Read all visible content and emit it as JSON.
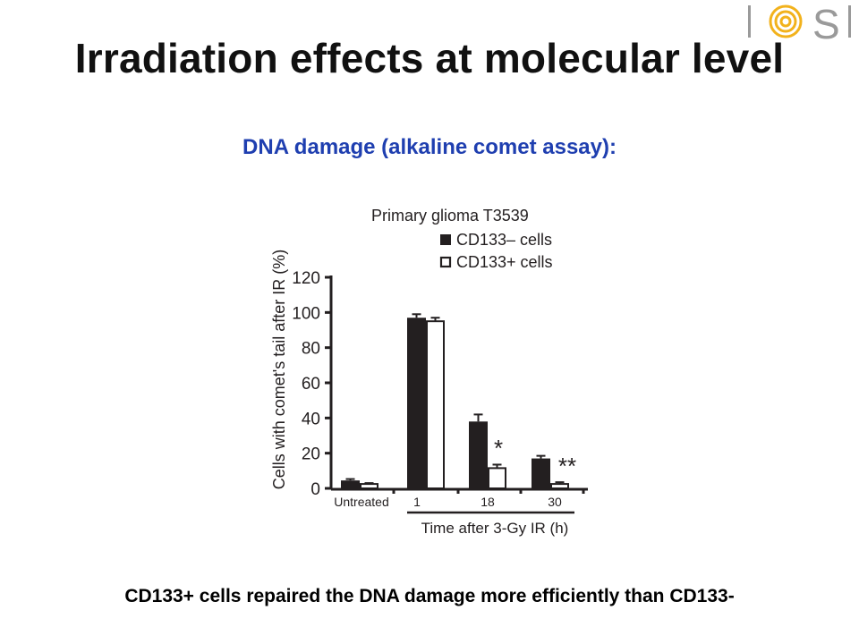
{
  "logo": {
    "letters": [
      "I",
      "S",
      "I"
    ],
    "mark_color": "#F2B21C",
    "letter_color": "#9A9A9A"
  },
  "slide": {
    "title": "Irradiation effects at molecular level",
    "subtitle": "DNA damage (alkaline comet assay):",
    "subtitle_color": "#1F3FB0",
    "caption": "CD133+ cells repaired the DNA damage more efficiently than CD133-"
  },
  "chart_data": {
    "type": "bar",
    "title": "Primary glioma T3539",
    "ylabel": "Cells with  comet's tail after IR (%)",
    "xlabel": "Time after 3-Gy IR (h)",
    "categories": [
      "Untreated",
      "1",
      "18",
      "30"
    ],
    "ylim": [
      0,
      120
    ],
    "yticks": [
      0,
      20,
      40,
      60,
      80,
      100,
      120
    ],
    "grid": false,
    "legend_position": "top-right",
    "series": [
      {
        "name": "CD133– cells",
        "color": "#231F20",
        "fill": "solid",
        "values": [
          4.5,
          97,
          38,
          17
        ],
        "errors": [
          0.8,
          2,
          4,
          1.5
        ]
      },
      {
        "name": "CD133+ cells",
        "color": "#231F20",
        "fill": "open",
        "values": [
          2.5,
          95,
          11.5,
          2.5
        ],
        "errors": [
          0.5,
          2,
          2,
          1
        ]
      }
    ],
    "annotations": [
      {
        "category": "18",
        "text": "*"
      },
      {
        "category": "30",
        "text": "**"
      }
    ]
  }
}
